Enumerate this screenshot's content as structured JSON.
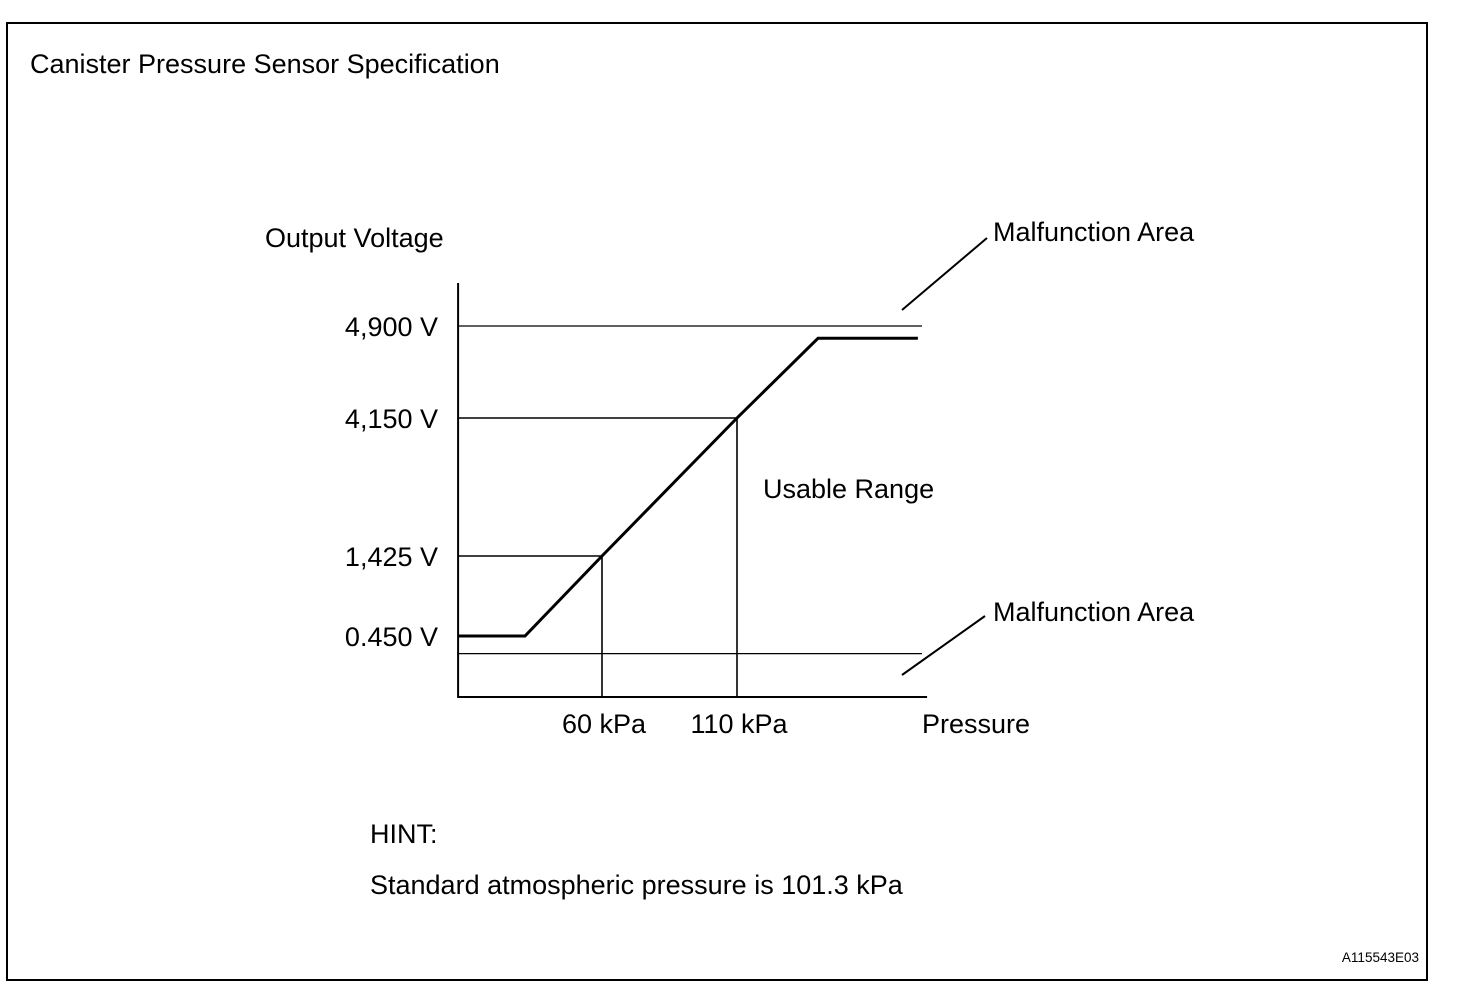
{
  "figure_id": "A115543E03",
  "hint": {
    "label": "HINT:",
    "text": "Standard atmospheric pressure is 101.3 kPa"
  },
  "chart_data": {
    "type": "line",
    "title": "Canister Pressure Sensor Specification",
    "xlabel": "Pressure",
    "ylabel": "Output Voltage",
    "x_ticks": [
      {
        "value": 60,
        "label": "60 kPa"
      },
      {
        "value": 110,
        "label": "110 kPa"
      }
    ],
    "y_ticks": [
      {
        "value": 0.45,
        "label": "0.450 V"
      },
      {
        "value": 1.425,
        "label": "1,425 V"
      },
      {
        "value": 4.15,
        "label": "4,150 V"
      },
      {
        "value": 4.9,
        "label": "4,900 V"
      }
    ],
    "y_scale": "non-uniform",
    "xlim": [
      6.7,
      180.4
    ],
    "ylim": [
      0,
      5.25
    ],
    "series": [
      {
        "points": [
          [
            6.7,
            0.45
          ],
          [
            31.5,
            0.45
          ],
          [
            60,
            1.425
          ],
          [
            110,
            4.15
          ],
          [
            140,
            4.8
          ],
          [
            177,
            4.8
          ]
        ]
      }
    ],
    "reference_lines": [
      {
        "axis": "y",
        "value": 4.9
      },
      {
        "axis": "y",
        "value": 0.32
      }
    ],
    "guides": [
      {
        "x": 60,
        "y": 1.425
      },
      {
        "x": 110,
        "y": 4.15
      }
    ],
    "annotations": [
      {
        "text": "Malfunction Area"
      },
      {
        "text": "Usable Range"
      },
      {
        "text": "Malfunction Area"
      }
    ],
    "grid": false,
    "legend": "none"
  }
}
